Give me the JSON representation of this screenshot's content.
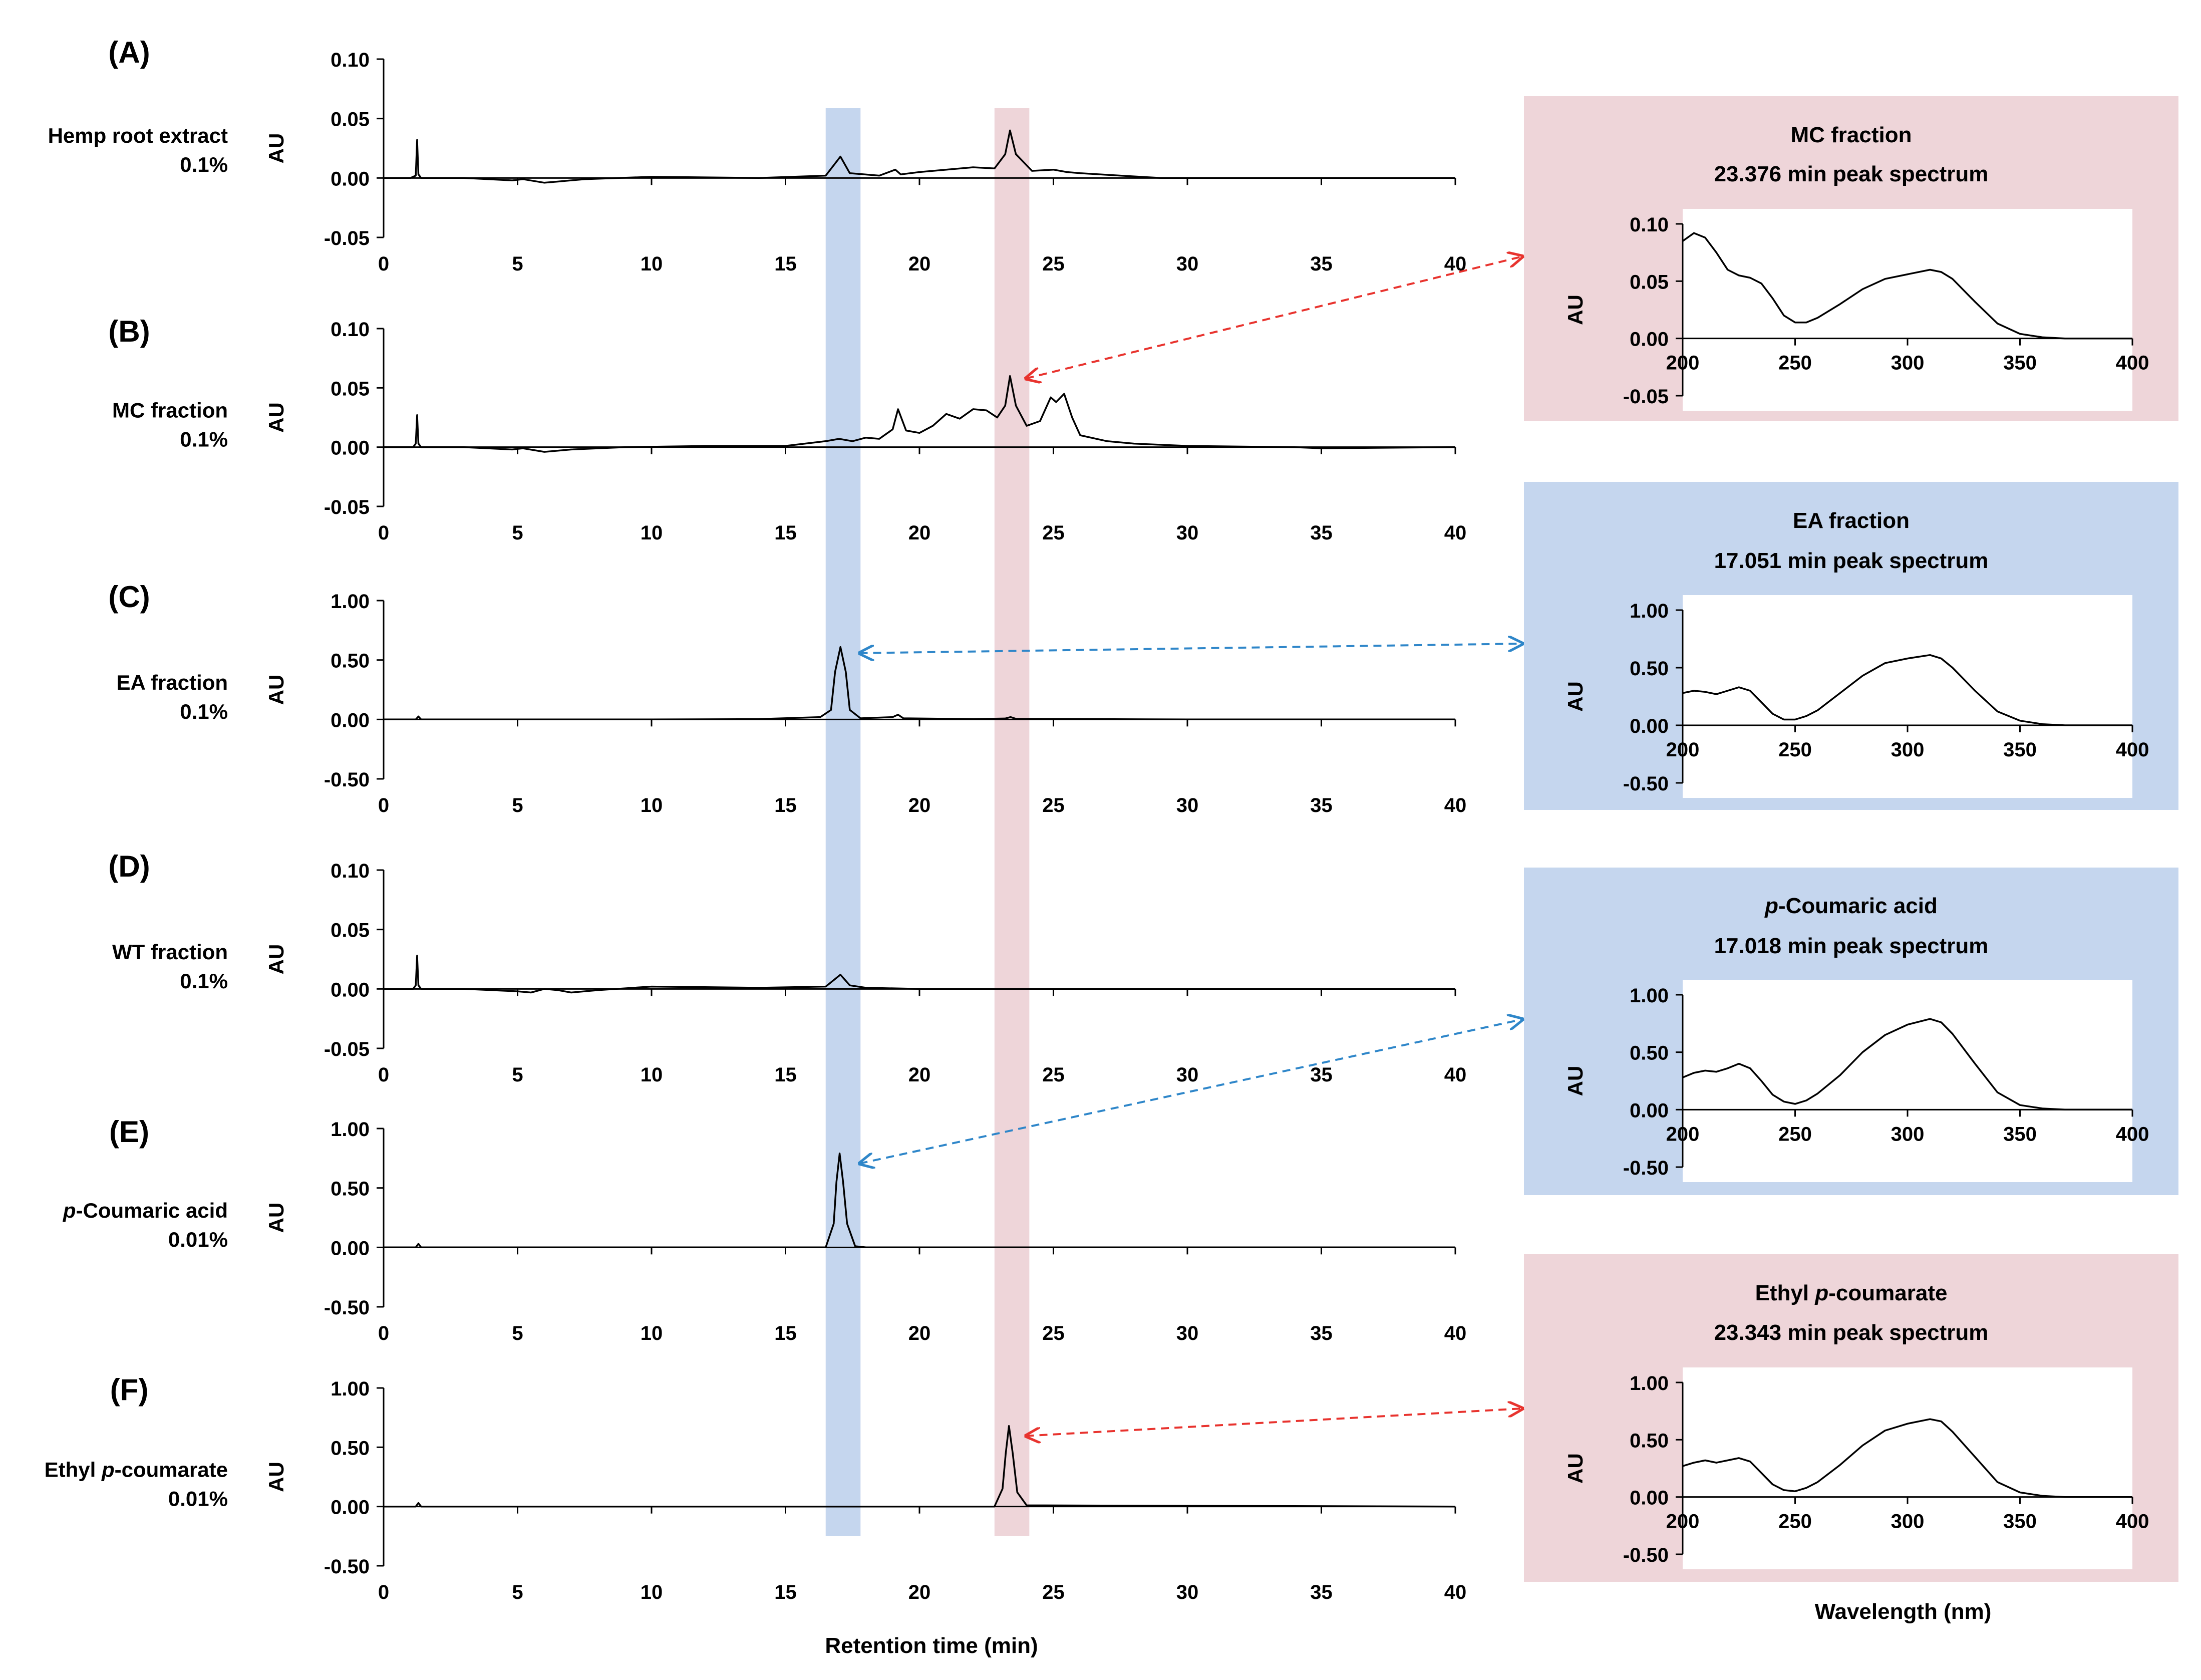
{
  "figure": {
    "x_axis_title": "Retention time (min)",
    "spectra_x_axis_title": "Wavelength (nm)"
  },
  "colors": {
    "blue_band": "#c5d6ee",
    "pink_band": "#eed5d9",
    "blue_arrow": "#2e86c9",
    "red_arrow": "#e8332e",
    "trace": "#000000"
  },
  "chart_data": [
    {
      "type": "line",
      "panel": "(A)",
      "sample": "Hemp root extract",
      "concentration": "0.1%",
      "ylabel": "AU",
      "xlim": [
        0,
        40
      ],
      "ylim": [
        -0.05,
        0.1
      ],
      "xticks": [
        "0",
        "5",
        "10",
        "15",
        "20",
        "25",
        "30",
        "35",
        "40"
      ],
      "yticks": [
        "0.10",
        "0.05",
        "0.00",
        "-0.05"
      ],
      "x": [
        0,
        1.0,
        1.2,
        1.25,
        1.3,
        1.4,
        3,
        4.8,
        5.2,
        6,
        6.5,
        7.5,
        10,
        14,
        16.5,
        17.05,
        17.4,
        18.5,
        19.1,
        19.3,
        20,
        21,
        22,
        22.8,
        23.2,
        23.38,
        23.6,
        24.2,
        25,
        25.5,
        26,
        27.5,
        29,
        35,
        40
      ],
      "y": [
        0.0,
        0.0,
        0.002,
        0.032,
        0.003,
        0.0,
        0.0,
        -0.002,
        -0.001,
        -0.004,
        -0.003,
        -0.001,
        0.001,
        0.0,
        0.002,
        0.018,
        0.004,
        0.002,
        0.007,
        0.003,
        0.005,
        0.007,
        0.009,
        0.008,
        0.02,
        0.04,
        0.02,
        0.006,
        0.007,
        0.005,
        0.004,
        0.002,
        0.0,
        0.0,
        0.0
      ]
    },
    {
      "type": "line",
      "panel": "(B)",
      "sample": "MC fraction",
      "concentration": "0.1%",
      "ylabel": "AU",
      "xlim": [
        0,
        40
      ],
      "ylim": [
        -0.05,
        0.1
      ],
      "xticks": [
        "0",
        "5",
        "10",
        "15",
        "20",
        "25",
        "30",
        "35",
        "40"
      ],
      "yticks": [
        "0.10",
        "0.05",
        "0.00",
        "-0.05"
      ],
      "x": [
        0,
        1.1,
        1.2,
        1.25,
        1.3,
        1.4,
        3,
        4.8,
        5.2,
        6,
        7,
        9,
        12,
        15,
        16.5,
        17.0,
        17.5,
        18.0,
        18.5,
        19.0,
        19.2,
        19.5,
        20,
        20.5,
        21,
        21.5,
        22,
        22.5,
        22.9,
        23.2,
        23.38,
        23.6,
        24,
        24.5,
        24.9,
        25.1,
        25.4,
        25.7,
        26,
        27,
        28,
        30,
        34,
        35,
        40
      ],
      "y": [
        0.0,
        0.0,
        0.003,
        0.027,
        0.003,
        0.0,
        0.0,
        -0.002,
        -0.001,
        -0.004,
        -0.002,
        0.0,
        0.001,
        0.001,
        0.005,
        0.007,
        0.005,
        0.008,
        0.007,
        0.015,
        0.032,
        0.014,
        0.012,
        0.018,
        0.028,
        0.024,
        0.032,
        0.031,
        0.025,
        0.035,
        0.06,
        0.035,
        0.018,
        0.022,
        0.042,
        0.038,
        0.045,
        0.025,
        0.01,
        0.005,
        0.003,
        0.001,
        0.0,
        -0.001,
        0.0
      ]
    },
    {
      "type": "line",
      "panel": "(C)",
      "sample": "EA fraction",
      "concentration": "0.1%",
      "ylabel": "AU",
      "xlim": [
        0,
        40
      ],
      "ylim": [
        -0.5,
        1.0
      ],
      "xticks": [
        "0",
        "5",
        "10",
        "15",
        "20",
        "25",
        "30",
        "35",
        "40"
      ],
      "yticks": [
        "1.00",
        "0.50",
        "0.00",
        "-0.50"
      ],
      "x": [
        0,
        1.2,
        1.3,
        1.4,
        10,
        14,
        16.3,
        16.7,
        16.85,
        17.05,
        17.25,
        17.4,
        17.8,
        19.0,
        19.2,
        19.4,
        22,
        23.2,
        23.4,
        23.6,
        30,
        40
      ],
      "y": [
        0.0,
        0.0,
        0.025,
        0.0,
        0.0,
        0.003,
        0.02,
        0.08,
        0.4,
        0.61,
        0.4,
        0.08,
        0.01,
        0.02,
        0.04,
        0.01,
        0.003,
        0.008,
        0.02,
        0.005,
        0.0,
        0.0
      ]
    },
    {
      "type": "line",
      "panel": "(D)",
      "sample": "WT fraction",
      "concentration": "0.1%",
      "ylabel": "AU",
      "xlim": [
        0,
        40
      ],
      "ylim": [
        -0.05,
        0.1
      ],
      "xticks": [
        "0",
        "5",
        "10",
        "15",
        "20",
        "25",
        "30",
        "35",
        "40"
      ],
      "yticks": [
        "0.10",
        "0.05",
        "0.00",
        "-0.05"
      ],
      "x": [
        0,
        1.1,
        1.2,
        1.25,
        1.3,
        1.4,
        3,
        5,
        5.5,
        6,
        6.5,
        7,
        8,
        10,
        14,
        16.5,
        17.05,
        17.4,
        18,
        20,
        40
      ],
      "y": [
        0.0,
        0.0,
        0.003,
        0.028,
        0.003,
        0.0,
        0.0,
        -0.002,
        -0.003,
        0.0,
        -0.001,
        -0.003,
        -0.001,
        0.002,
        0.001,
        0.002,
        0.012,
        0.003,
        0.001,
        0.0,
        0.0
      ]
    },
    {
      "type": "line",
      "panel": "(E)",
      "sample": "p-Coumaric acid",
      "concentration": "0.01%",
      "ylabel": "AU",
      "xlim": [
        0,
        40
      ],
      "ylim": [
        -0.5,
        1.0
      ],
      "xticks": [
        "0",
        "5",
        "10",
        "15",
        "20",
        "25",
        "30",
        "35",
        "40"
      ],
      "yticks": [
        "1.00",
        "0.50",
        "0.00",
        "-0.50"
      ],
      "x": [
        0,
        1.2,
        1.3,
        1.4,
        16.5,
        16.8,
        16.9,
        17.02,
        17.15,
        17.3,
        17.6,
        18,
        40
      ],
      "y": [
        0.0,
        0.0,
        0.03,
        0.0,
        0.0,
        0.2,
        0.55,
        0.79,
        0.55,
        0.2,
        0.01,
        0.0,
        0.0
      ]
    },
    {
      "type": "line",
      "panel": "(F)",
      "sample": "Ethyl p-coumarate",
      "concentration": "0.01%",
      "ylabel": "AU",
      "xlim": [
        0,
        40
      ],
      "ylim": [
        -0.5,
        1.0
      ],
      "xticks": [
        "0",
        "5",
        "10",
        "15",
        "20",
        "25",
        "30",
        "35",
        "40"
      ],
      "yticks": [
        "1.00",
        "0.50",
        "0.00",
        "-0.50"
      ],
      "x": [
        0,
        1.2,
        1.3,
        1.4,
        22.8,
        23.1,
        23.22,
        23.34,
        23.48,
        23.65,
        24,
        40
      ],
      "y": [
        0.0,
        0.0,
        0.03,
        0.0,
        0.0,
        0.15,
        0.45,
        0.68,
        0.45,
        0.12,
        0.01,
        0.0
      ]
    },
    {
      "type": "line",
      "title": "MC fraction",
      "subtitle": "23.376 min peak spectrum",
      "ylabel": "AU",
      "xlim": [
        200,
        400
      ],
      "ylim": [
        -0.05,
        0.1
      ],
      "xticks": [
        "200",
        "250",
        "300",
        "350",
        "400"
      ],
      "yticks": [
        "0.10",
        "0.05",
        "0.00",
        "-0.05"
      ],
      "x": [
        200,
        205,
        210,
        215,
        220,
        225,
        230,
        235,
        240,
        245,
        250,
        255,
        260,
        270,
        280,
        290,
        300,
        310,
        315,
        320,
        330,
        340,
        350,
        360,
        370,
        380,
        400
      ],
      "y": [
        0.085,
        0.092,
        0.088,
        0.075,
        0.06,
        0.055,
        0.053,
        0.048,
        0.035,
        0.02,
        0.014,
        0.014,
        0.018,
        0.03,
        0.043,
        0.052,
        0.056,
        0.06,
        0.058,
        0.052,
        0.032,
        0.013,
        0.004,
        0.001,
        0.0,
        0.0,
        0.0
      ]
    },
    {
      "type": "line",
      "title": "EA fraction",
      "subtitle": "17.051 min peak spectrum",
      "ylabel": "AU",
      "xlim": [
        200,
        400
      ],
      "ylim": [
        -0.5,
        1.0
      ],
      "xticks": [
        "200",
        "250",
        "300",
        "350",
        "400"
      ],
      "yticks": [
        "1.00",
        "0.50",
        "0.00",
        "-0.50"
      ],
      "x": [
        200,
        205,
        210,
        215,
        220,
        225,
        230,
        235,
        240,
        245,
        250,
        255,
        260,
        270,
        280,
        290,
        300,
        310,
        315,
        320,
        330,
        340,
        350,
        360,
        370,
        400
      ],
      "y": [
        0.28,
        0.3,
        0.29,
        0.27,
        0.3,
        0.33,
        0.3,
        0.2,
        0.1,
        0.05,
        0.05,
        0.08,
        0.13,
        0.28,
        0.43,
        0.54,
        0.58,
        0.61,
        0.58,
        0.5,
        0.3,
        0.12,
        0.04,
        0.01,
        0.0,
        0.0
      ]
    },
    {
      "type": "line",
      "title": "p-Coumaric acid",
      "subtitle": "17.018 min peak spectrum",
      "ylabel": "AU",
      "xlim": [
        200,
        400
      ],
      "ylim": [
        -0.5,
        1.0
      ],
      "xticks": [
        "200",
        "250",
        "300",
        "350",
        "400"
      ],
      "yticks": [
        "1.00",
        "0.50",
        "0.00",
        "-0.50"
      ],
      "x": [
        200,
        205,
        210,
        215,
        220,
        225,
        230,
        235,
        240,
        245,
        250,
        255,
        260,
        270,
        280,
        290,
        300,
        310,
        315,
        320,
        330,
        340,
        350,
        360,
        370,
        400
      ],
      "y": [
        0.28,
        0.32,
        0.34,
        0.33,
        0.36,
        0.4,
        0.36,
        0.25,
        0.13,
        0.07,
        0.05,
        0.08,
        0.14,
        0.3,
        0.5,
        0.65,
        0.74,
        0.79,
        0.76,
        0.66,
        0.4,
        0.15,
        0.04,
        0.01,
        0.0,
        0.0
      ]
    },
    {
      "type": "line",
      "title": "Ethyl p-coumarate",
      "subtitle": "23.343 min peak spectrum",
      "ylabel": "AU",
      "xlim": [
        200,
        400
      ],
      "ylim": [
        -0.5,
        1.0
      ],
      "xticks": [
        "200",
        "250",
        "300",
        "350",
        "400"
      ],
      "yticks": [
        "1.00",
        "0.50",
        "0.00",
        "-0.50"
      ],
      "x": [
        200,
        205,
        210,
        215,
        220,
        225,
        230,
        235,
        240,
        245,
        250,
        255,
        260,
        270,
        280,
        290,
        300,
        310,
        315,
        320,
        330,
        340,
        350,
        360,
        370,
        400
      ],
      "y": [
        0.27,
        0.3,
        0.32,
        0.3,
        0.32,
        0.34,
        0.31,
        0.21,
        0.11,
        0.06,
        0.05,
        0.08,
        0.13,
        0.28,
        0.45,
        0.58,
        0.64,
        0.68,
        0.66,
        0.57,
        0.35,
        0.13,
        0.04,
        0.01,
        0.0,
        0.0
      ]
    }
  ]
}
